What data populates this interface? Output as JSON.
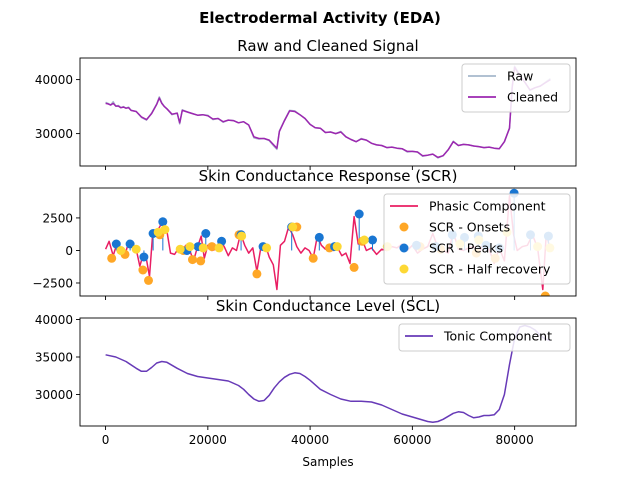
{
  "figure": {
    "title": "Electrodermal Activity (EDA)"
  },
  "colors": {
    "raw": "#a6b8cc",
    "cleaned": "#9c27b0",
    "phasic": "#e91e63",
    "onsets": "#ffa726",
    "peaks": "#1976d2",
    "half_recovery": "#fdd835",
    "tonic": "#673ab7"
  },
  "chart_data": [
    {
      "type": "line",
      "title": "Raw and Cleaned Signal",
      "xlim": [
        -5000,
        92000
      ],
      "ylim": [
        24000,
        44000
      ],
      "yticks": [
        30000,
        40000
      ],
      "ytick_labels": [
        "30000",
        "40000"
      ],
      "legend": {
        "placement": "top-right"
      },
      "grid": false,
      "x": [
        0,
        500,
        1000,
        1500,
        2000,
        2500,
        3000,
        3500,
        4000,
        4500,
        5000,
        6000,
        7000,
        8000,
        9000,
        10000,
        10500,
        11000,
        11500,
        12000,
        13000,
        14000,
        14500,
        15000,
        16000,
        17000,
        18000,
        19000,
        20000,
        21000,
        22000,
        23000,
        24000,
        25000,
        26000,
        27000,
        28000,
        29000,
        30000,
        31000,
        32000,
        33000,
        33500,
        34000,
        35000,
        36000,
        37000,
        38000,
        39000,
        40000,
        41000,
        42000,
        43000,
        44000,
        45000,
        46000,
        47000,
        48000,
        49000,
        50000,
        51000,
        52000,
        53000,
        54000,
        55000,
        56000,
        57000,
        58000,
        59000,
        60000,
        61000,
        62000,
        63000,
        64000,
        65000,
        66000,
        67000,
        68000,
        69000,
        70000,
        71000,
        72000,
        73000,
        74000,
        75000,
        76000,
        77000,
        78000,
        79000,
        79500,
        80000,
        81000,
        82000,
        83000,
        84000,
        85000,
        86000,
        87000
      ],
      "series": [
        {
          "name": "Raw",
          "values": [
            35800,
            35600,
            35300,
            35900,
            35100,
            35200,
            34800,
            35000,
            34700,
            34900,
            34300,
            34100,
            33000,
            32500,
            33800,
            35500,
            36800,
            35700,
            35000,
            34600,
            33500,
            33800,
            31800,
            34400,
            34000,
            33700,
            33400,
            33500,
            33400,
            32600,
            32800,
            32100,
            32500,
            32400,
            32000,
            32200,
            31600,
            29200,
            29000,
            29100,
            28700,
            27600,
            27100,
            30500,
            32500,
            34300,
            34200,
            33500,
            32800,
            31700,
            31100,
            31000,
            30200,
            30300,
            30000,
            30400,
            29400,
            28900,
            28500,
            29100,
            28800,
            28200,
            27900,
            27800,
            27400,
            27500,
            27300,
            27200,
            26600,
            26700,
            26600,
            25800,
            26000,
            26200,
            25500,
            25900,
            27000,
            28600,
            27800,
            28000,
            27900,
            27700,
            27600,
            27400,
            27500,
            27300,
            27200,
            28500,
            31000,
            38500,
            42500,
            40800,
            39500,
            38000,
            38500,
            38800,
            39500,
            40200
          ]
        },
        {
          "name": "Cleaned",
          "values": [
            35600,
            35500,
            35300,
            35600,
            35100,
            35100,
            34800,
            34900,
            34700,
            34800,
            34300,
            34100,
            33100,
            32600,
            33700,
            35400,
            36600,
            35600,
            35000,
            34600,
            33600,
            33800,
            32000,
            34300,
            34000,
            33700,
            33400,
            33500,
            33300,
            32700,
            32800,
            32200,
            32500,
            32400,
            32000,
            32200,
            31600,
            29400,
            29100,
            29100,
            28800,
            27800,
            27300,
            30400,
            32400,
            34200,
            34100,
            33500,
            32800,
            31700,
            31100,
            31000,
            30200,
            30300,
            30000,
            30300,
            29400,
            28900,
            28500,
            29000,
            28800,
            28200,
            27900,
            27800,
            27400,
            27500,
            27300,
            27200,
            26700,
            26700,
            26600,
            25900,
            26000,
            26200,
            25600,
            25900,
            27000,
            28500,
            27800,
            28000,
            27900,
            27700,
            27600,
            27400,
            27500,
            27300,
            27200,
            28500,
            31000,
            38400,
            42300,
            40700,
            39500,
            38100,
            38500,
            38800,
            39400,
            40000
          ]
        }
      ]
    },
    {
      "type": "line",
      "title": "Skin Conductance Response (SCR)",
      "xlim": [
        -5000,
        92000
      ],
      "ylim": [
        -3500,
        4800
      ],
      "yticks": [
        -2500,
        0,
        2500
      ],
      "ytick_labels": [
        "−2500",
        "0",
        "2500"
      ],
      "legend": {
        "placement": "top-right"
      },
      "grid": false,
      "x": [
        0,
        700,
        1500,
        2200,
        3000,
        3800,
        4500,
        5200,
        6000,
        6700,
        7300,
        8000,
        8600,
        9200,
        10000,
        10700,
        11300,
        12000,
        12700,
        13500,
        14300,
        15000,
        15700,
        16400,
        17200,
        18000,
        18700,
        19300,
        20000,
        20800,
        21600,
        22400,
        23200,
        24000,
        24800,
        25600,
        26400,
        27200,
        28000,
        28800,
        29600,
        30400,
        31200,
        32000,
        32800,
        33500,
        34200,
        35000,
        35800,
        36600,
        37400,
        38200,
        39000,
        39800,
        40600,
        41400,
        42200,
        43000,
        43800,
        44600,
        45400,
        46200,
        47000,
        47800,
        48600,
        49400,
        50200,
        51000,
        52000,
        53000,
        54000,
        55000,
        56000,
        57000,
        58000,
        59000,
        60000,
        61000,
        62000,
        63000,
        64000,
        65000,
        66000,
        67000,
        68000,
        69000,
        70000,
        71000,
        72000,
        73000,
        74000,
        75000,
        76000,
        77000,
        78000,
        79000,
        79800,
        80500,
        81500,
        82500,
        83500,
        84500,
        85500,
        86200,
        87000
      ],
      "series": [
        {
          "name": "Phasic Component",
          "values": [
            100,
            700,
            -400,
            500,
            200,
            -300,
            600,
            300,
            100,
            -1200,
            -400,
            -700,
            -2000,
            1200,
            1400,
            1900,
            2200,
            1500,
            -200,
            -300,
            200,
            0,
            400,
            100,
            -800,
            300,
            1100,
            -600,
            400,
            0,
            100,
            800,
            300,
            -400,
            200,
            0,
            1300,
            400,
            -200,
            200,
            -1600,
            300,
            500,
            -500,
            -1100,
            -3000,
            400,
            700,
            1800,
            1200,
            300,
            -200,
            200,
            0,
            -600,
            1100,
            400,
            100,
            300,
            0,
            200,
            -400,
            -200,
            -1000,
            2600,
            500,
            800,
            0,
            200,
            -300,
            100,
            0,
            300,
            200,
            500,
            0,
            400,
            -200,
            100,
            300,
            1300,
            200,
            0,
            -200,
            1400,
            100,
            0,
            200,
            300,
            -200,
            600,
            100,
            -1000,
            200,
            -800,
            4200,
            1200,
            0,
            300,
            400,
            1200,
            200,
            -3000,
            1300,
            0
          ]
        }
      ],
      "markers": [
        {
          "name": "SCR - Onsets",
          "x": [
            1200,
            3800,
            7300,
            8400,
            10600,
            15200,
            17000,
            18600,
            20800,
            26100,
            29600,
            37400,
            40600,
            43800,
            48600,
            50200,
            61500,
            65500,
            72500,
            76200,
            86000
          ],
          "y": [
            -600,
            -300,
            -1500,
            -2300,
            1200,
            0,
            -700,
            -800,
            300,
            1200,
            -1800,
            1800,
            -600,
            200,
            -1300,
            700,
            300,
            100,
            -200,
            -600,
            -3500
          ]
        },
        {
          "name": "SCR - Peaks",
          "x": [
            2100,
            4800,
            7500,
            9300,
            11200,
            15900,
            18100,
            19600,
            22700,
            26500,
            30800,
            36400,
            41800,
            44800,
            49600,
            52200,
            60800,
            64600,
            67800,
            70200,
            72900,
            74400,
            77000,
            79900,
            83100,
            86600
          ],
          "y": [
            500,
            500,
            -500,
            1300,
            2200,
            0,
            300,
            1300,
            700,
            1200,
            300,
            1800,
            1000,
            300,
            2800,
            800,
            400,
            300,
            1200,
            1000,
            1100,
            400,
            200,
            4400,
            1200,
            1100
          ]
        },
        {
          "name": "SCR - Half recovery",
          "x": [
            3000,
            6000,
            10300,
            11600,
            14600,
            16500,
            19100,
            22200,
            26600,
            31500,
            36600,
            45300,
            50600,
            55100,
            69300,
            73000,
            78500,
            84500,
            86900
          ],
          "y": [
            0,
            100,
            1400,
            1600,
            100,
            300,
            200,
            200,
            1100,
            200,
            1800,
            300,
            800,
            300,
            500,
            800,
            1400,
            300,
            200
          ]
        }
      ]
    },
    {
      "type": "line",
      "title": "Skin Conductance Level (SCL)",
      "xlim": [
        -5000,
        92000
      ],
      "ylim": [
        25800,
        40200
      ],
      "yticks": [
        30000,
        35000,
        40000
      ],
      "ytick_labels": [
        "30000",
        "35000",
        "40000"
      ],
      "xticks": [
        0,
        20000,
        40000,
        60000,
        80000
      ],
      "xtick_labels": [
        "0",
        "20000",
        "40000",
        "60000",
        "80000"
      ],
      "xlabel": "Samples",
      "legend": {
        "placement": "top-right"
      },
      "grid": false,
      "x": [
        0,
        2000,
        4000,
        6000,
        7000,
        8000,
        9000,
        10000,
        11000,
        12000,
        14000,
        16000,
        18000,
        20000,
        22000,
        24000,
        26000,
        27000,
        28000,
        29000,
        30000,
        31000,
        32000,
        33000,
        34000,
        35000,
        36000,
        37000,
        38000,
        39000,
        40000,
        41000,
        42000,
        44000,
        46000,
        48000,
        50000,
        52000,
        54000,
        56000,
        58000,
        60000,
        62000,
        63000,
        64000,
        65000,
        66000,
        67000,
        68000,
        69000,
        70000,
        71000,
        72000,
        73000,
        74000,
        75000,
        76000,
        77000,
        78000,
        79000,
        80000,
        81000,
        82000,
        83000,
        84000,
        85000,
        86000,
        87000
      ],
      "series": [
        {
          "name": "Tonic Component",
          "values": [
            35300,
            35000,
            34400,
            33500,
            33100,
            33100,
            33600,
            34200,
            34400,
            34300,
            33500,
            32800,
            32400,
            32200,
            32000,
            31800,
            31200,
            30700,
            30000,
            29400,
            29100,
            29200,
            29900,
            30900,
            31700,
            32300,
            32700,
            32900,
            32800,
            32400,
            31900,
            31300,
            30700,
            30000,
            29400,
            29100,
            29100,
            29000,
            28600,
            28000,
            27400,
            27000,
            26600,
            26400,
            26300,
            26400,
            26700,
            27100,
            27500,
            27700,
            27600,
            27200,
            26900,
            27000,
            27200,
            27200,
            27300,
            28000,
            30000,
            34000,
            37500,
            39000,
            39200,
            39000,
            38600,
            37900,
            37400,
            37200
          ]
        }
      ]
    }
  ]
}
